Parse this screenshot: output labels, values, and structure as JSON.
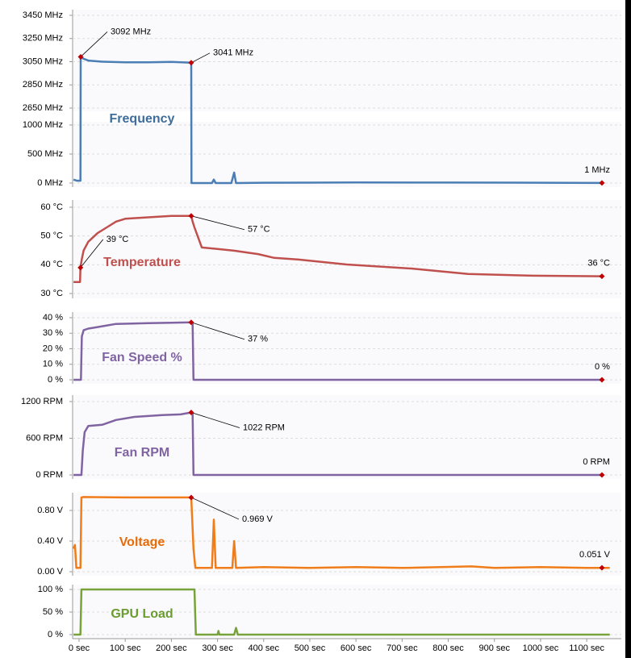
{
  "chart_data": [
    {
      "type": "line",
      "title": "Frequency",
      "color": "#4a7eb5",
      "title_color": "#3e6d9c",
      "x": [
        -12,
        -5,
        0,
        3,
        3.5,
        10,
        20,
        50,
        100,
        150,
        200,
        243,
        243.5,
        250,
        288,
        292,
        296,
        330,
        336,
        340,
        400,
        600,
        800,
        1000,
        1133
      ],
      "values": [
        60,
        40,
        40,
        40,
        3092,
        3075,
        3060,
        3050,
        3045,
        3045,
        3048,
        3041,
        0,
        0,
        0,
        60,
        0,
        0,
        180,
        0,
        5,
        10,
        8,
        5,
        1
      ],
      "value_labels": [
        null,
        null,
        null,
        null,
        "3092 MHz",
        null,
        null,
        null,
        null,
        null,
        null,
        "3041 MHz",
        null,
        null,
        null,
        null,
        null,
        null,
        null,
        null,
        null,
        null,
        null,
        null,
        "1 MHz"
      ],
      "ylim": [
        0,
        3450
      ],
      "ybreak": [
        1000,
        2650
      ],
      "yticks": [
        {
          "value": 0,
          "label": "0 MHz"
        },
        {
          "value": 500,
          "label": "500 MHz"
        },
        {
          "value": 1000,
          "label": "1000 MHz"
        },
        {
          "value": 2650,
          "label": "2650 MHz"
        },
        {
          "value": 2850,
          "label": "2850 MHz"
        },
        {
          "value": 3050,
          "label": "3050 MHz"
        },
        {
          "value": 3250,
          "label": "3250 MHz"
        },
        {
          "value": 3450,
          "label": "3450 MHz"
        }
      ],
      "grid": true
    },
    {
      "type": "line",
      "title": "Temperature",
      "color": "#c0504d",
      "title_color": "#c0504d",
      "x": [
        -12,
        2,
        3,
        6,
        10,
        20,
        40,
        60,
        80,
        100,
        150,
        200,
        243,
        246,
        250,
        266,
        300,
        336,
        388,
        423,
        476,
        580,
        720,
        843,
        983,
        1133
      ],
      "values": [
        34,
        34,
        39,
        42,
        45,
        48,
        51,
        53,
        55,
        56,
        56.5,
        57,
        57,
        55,
        53,
        46,
        45.5,
        44.9,
        43.7,
        42.4,
        41.8,
        40.1,
        38.7,
        36.8,
        36.2,
        36
      ],
      "value_labels": [
        null,
        null,
        "39 °C",
        null,
        null,
        null,
        null,
        null,
        null,
        null,
        null,
        null,
        "57 °C",
        null,
        null,
        null,
        null,
        null,
        null,
        null,
        null,
        null,
        null,
        null,
        null,
        "36 °C"
      ],
      "ylim": [
        30,
        60
      ],
      "yticks": [
        {
          "value": 30,
          "label": "30 °C"
        },
        {
          "value": 40,
          "label": "40 °C"
        },
        {
          "value": 50,
          "label": "50 °C"
        },
        {
          "value": 60,
          "label": "60 °C"
        }
      ],
      "grid": true
    },
    {
      "type": "line",
      "title": "Fan Speed %",
      "color": "#8064a2",
      "title_color": "#8064a2",
      "x": [
        -12,
        4,
        6,
        10,
        20,
        40,
        80,
        150,
        200,
        243,
        246,
        248,
        600,
        1133
      ],
      "values": [
        0,
        0,
        28,
        32,
        33,
        34,
        36,
        36.5,
        36.8,
        37,
        36,
        0,
        0,
        0
      ],
      "value_labels": [
        null,
        null,
        null,
        null,
        null,
        null,
        null,
        null,
        null,
        "37 %",
        null,
        null,
        null,
        "0 %"
      ],
      "ylim": [
        0,
        40
      ],
      "yticks": [
        {
          "value": 0,
          "label": "0 %"
        },
        {
          "value": 10,
          "label": "10 %"
        },
        {
          "value": 20,
          "label": "20 %"
        },
        {
          "value": 30,
          "label": "30 %"
        },
        {
          "value": 40,
          "label": "40 %"
        }
      ],
      "grid": true
    },
    {
      "type": "line",
      "title": "Fan RPM",
      "color": "#8064a2",
      "title_color": "#8064a2",
      "x": [
        -12,
        5,
        8,
        12,
        20,
        50,
        80,
        120,
        180,
        220,
        243,
        246,
        248,
        600,
        1133
      ],
      "values": [
        0,
        0,
        400,
        700,
        800,
        820,
        900,
        950,
        980,
        990,
        1022,
        1000,
        0,
        0,
        0
      ],
      "value_labels": [
        null,
        null,
        null,
        null,
        null,
        null,
        null,
        null,
        null,
        null,
        "1022 RPM",
        null,
        null,
        null,
        "0 RPM"
      ],
      "ylim": [
        0,
        1200
      ],
      "yticks": [
        {
          "value": 0,
          "label": "0 RPM"
        },
        {
          "value": 600,
          "label": "600 RPM"
        },
        {
          "value": 1200,
          "label": "1200 RPM"
        }
      ],
      "grid": true
    },
    {
      "type": "line",
      "title": "Voltage",
      "color": "#f07d1a",
      "title_color": "#e46c0a",
      "x": [
        -12,
        -9,
        -6,
        -3,
        0,
        3,
        5,
        10,
        100,
        200,
        243,
        248,
        252,
        288,
        292,
        296,
        332,
        336,
        340,
        400,
        500,
        600,
        700,
        850,
        900,
        1000,
        1100,
        1133,
        1150
      ],
      "values": [
        0.3,
        0.35,
        0.05,
        0.05,
        0.05,
        0.05,
        0.97,
        0.975,
        0.97,
        0.97,
        0.969,
        0.3,
        0.05,
        0.05,
        0.68,
        0.05,
        0.05,
        0.4,
        0.05,
        0.06,
        0.05,
        0.06,
        0.05,
        0.07,
        0.05,
        0.06,
        0.05,
        0.051,
        0.05
      ],
      "value_labels": [
        null,
        null,
        null,
        null,
        null,
        null,
        null,
        null,
        null,
        null,
        "0.969 V",
        null,
        null,
        null,
        null,
        null,
        null,
        null,
        null,
        null,
        null,
        null,
        null,
        null,
        null,
        null,
        null,
        "0.051 V",
        null
      ],
      "ylim": [
        0,
        1.0
      ],
      "yticks": [
        {
          "value": 0,
          "label": "0.00 V"
        },
        {
          "value": 0.4,
          "label": "0.40 V"
        },
        {
          "value": 0.8,
          "label": "0.80 V"
        }
      ],
      "grid": true
    },
    {
      "type": "line",
      "title": "GPU Load",
      "color": "#77a33a",
      "title_color": "#6a9c2f",
      "x": [
        -12,
        3,
        5,
        250,
        253,
        300,
        302,
        304,
        336,
        340,
        344,
        1150
      ],
      "values": [
        0,
        0,
        100,
        100,
        0,
        0,
        8,
        0,
        0,
        15,
        0,
        0
      ],
      "ylim": [
        0,
        100
      ],
      "yticks": [
        {
          "value": 0,
          "label": "0 %"
        },
        {
          "value": 50,
          "label": "50 %"
        },
        {
          "value": 100,
          "label": "100 %"
        }
      ],
      "grid": true,
      "xlim": [
        -14,
        1175
      ],
      "xticks": [
        {
          "value": 0,
          "label": "0 sec"
        },
        {
          "value": 100,
          "label": "100 sec"
        },
        {
          "value": 200,
          "label": "200 sec"
        },
        {
          "value": 300,
          "label": "300 sec"
        },
        {
          "value": 400,
          "label": "400 sec"
        },
        {
          "value": 500,
          "label": "500 sec"
        },
        {
          "value": 600,
          "label": "600 sec"
        },
        {
          "value": 700,
          "label": "700 sec"
        },
        {
          "value": 800,
          "label": "800 sec"
        },
        {
          "value": 900,
          "label": "900 sec"
        },
        {
          "value": 1000,
          "label": "1000 sec"
        },
        {
          "value": 1100,
          "label": "1100 sec"
        }
      ]
    }
  ]
}
